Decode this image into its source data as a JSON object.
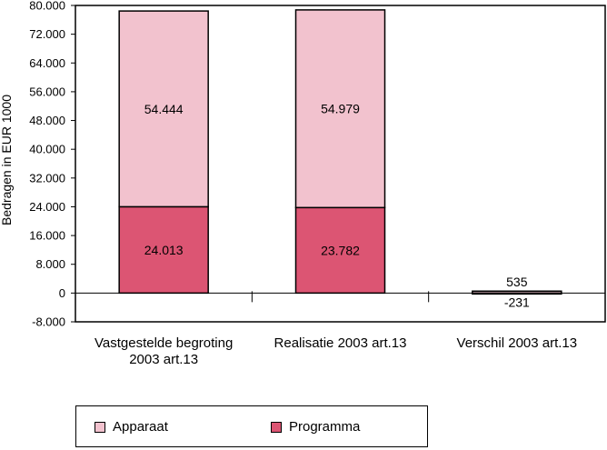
{
  "chart_data": {
    "type": "bar",
    "stacked": true,
    "ylabel": "Bedragen in EUR 1000",
    "ylim": [
      -8000,
      80000
    ],
    "yticks": [
      80000,
      72000,
      64000,
      56000,
      48000,
      40000,
      32000,
      24000,
      16000,
      8000,
      0,
      -8000
    ],
    "ytick_labels": [
      "80.000",
      "72.000",
      "64.000",
      "56.000",
      "48.000",
      "40.000",
      "32.000",
      "24.000",
      "16.000",
      "8.000",
      "0",
      "-8.000"
    ],
    "categories": [
      [
        "Vastgestelde begroting",
        "2003 art.13"
      ],
      [
        "Realisatie 2003 art.13"
      ],
      [
        "Verschil 2003 art.13"
      ]
    ],
    "series": [
      {
        "name": "Programma",
        "color": "#dc5573",
        "values": [
          24013,
          23782,
          -231
        ],
        "labels": [
          "24.013",
          "23.782",
          "-231"
        ]
      },
      {
        "name": "Apparaat",
        "color": "#f2c2ce",
        "values": [
          54444,
          54979,
          535
        ],
        "labels": [
          "54.444",
          "54.979",
          "535"
        ]
      }
    ],
    "legend": {
      "position": "bottom",
      "items": [
        {
          "name": "Apparaat",
          "color": "#f2c2ce"
        },
        {
          "name": "Programma",
          "color": "#dc5573"
        }
      ]
    }
  }
}
